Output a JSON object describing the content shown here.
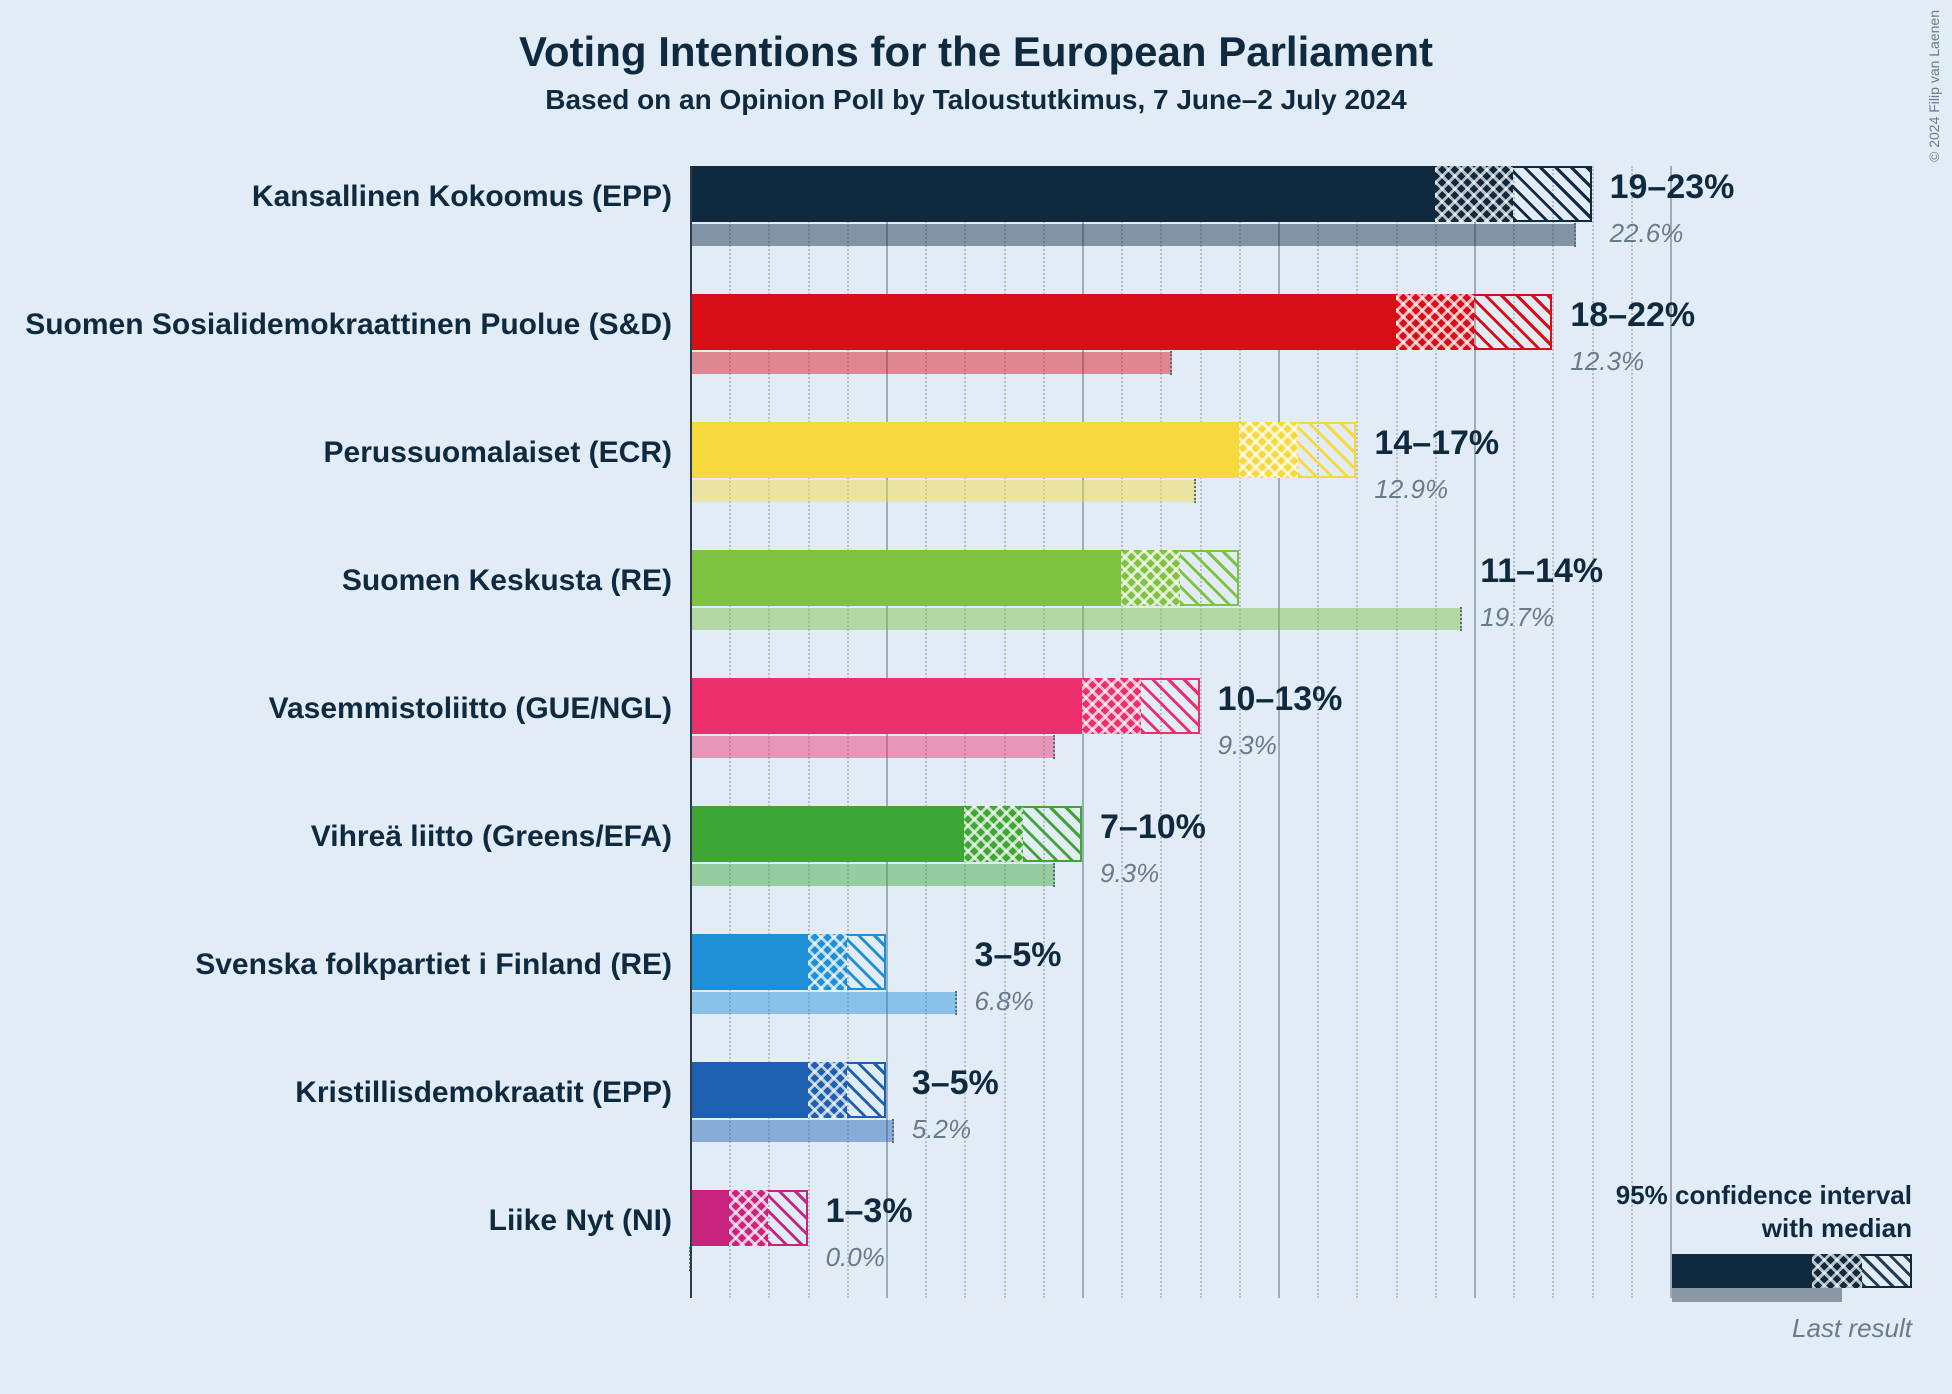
{
  "title": "Voting Intentions for the European Parliament",
  "subtitle": "Based on an Opinion Poll by Taloustutkimus, 7 June–2 July 2024",
  "copyright": "© 2024 Filip van Laenen",
  "title_fontsize": 42,
  "subtitle_fontsize": 28,
  "label_fontsize": 30,
  "value_fontsize": 34,
  "last_fontsize": 26,
  "background_color": "#e1ecf7",
  "text_color": "#0f2a3f",
  "muted_text_color": "#6a7a8a",
  "axis": {
    "max": 25,
    "major_ticks": [
      0,
      5,
      10,
      15,
      20,
      25
    ],
    "minor_step": 1
  },
  "legend": {
    "line1": "95% confidence interval",
    "line2": "with median",
    "last_label": "Last result",
    "fontsize": 26
  },
  "parties": [
    {
      "name": "Kansallinen Kokoomus (EPP)",
      "color": "#0f2a3f",
      "low": 19,
      "median": 21,
      "high": 23,
      "last": 22.6,
      "range_label": "19–23%",
      "last_label": "22.6%"
    },
    {
      "name": "Suomen Sosialidemokraattinen Puolue (S&D)",
      "color": "#d90d15",
      "low": 18,
      "median": 20,
      "high": 22,
      "last": 12.3,
      "range_label": "18–22%",
      "last_label": "12.3%"
    },
    {
      "name": "Perussuomalaiset (ECR)",
      "color": "#f7d93e",
      "low": 14,
      "median": 15.5,
      "high": 17,
      "last": 12.9,
      "range_label": "14–17%",
      "last_label": "12.9%"
    },
    {
      "name": "Suomen Keskusta (RE)",
      "color": "#7fc241",
      "low": 11,
      "median": 12.5,
      "high": 14,
      "last": 19.7,
      "range_label": "11–14%",
      "last_label": "19.7%"
    },
    {
      "name": "Vasemmistoliitto (GUE/NGL)",
      "color": "#ed2e6c",
      "low": 10,
      "median": 11.5,
      "high": 13,
      "last": 9.3,
      "range_label": "10–13%",
      "last_label": "9.3%"
    },
    {
      "name": "Vihreä liitto (Greens/EFA)",
      "color": "#3fa535",
      "low": 7,
      "median": 8.5,
      "high": 10,
      "last": 9.3,
      "range_label": "7–10%",
      "last_label": "9.3%"
    },
    {
      "name": "Svenska folkpartiet i Finland (RE)",
      "color": "#1f8fd6",
      "low": 3,
      "median": 4,
      "high": 5,
      "last": 6.8,
      "range_label": "3–5%",
      "last_label": "6.8%"
    },
    {
      "name": "Kristillisdemokraatit (EPP)",
      "color": "#1d5fb0",
      "low": 3,
      "median": 4,
      "high": 5,
      "last": 5.2,
      "range_label": "3–5%",
      "last_label": "5.2%"
    },
    {
      "name": "Liike Nyt (NI)",
      "color": "#c7237f",
      "low": 1,
      "median": 2,
      "high": 3,
      "last": 0.0,
      "range_label": "1–3%",
      "last_label": "0.0%"
    }
  ]
}
